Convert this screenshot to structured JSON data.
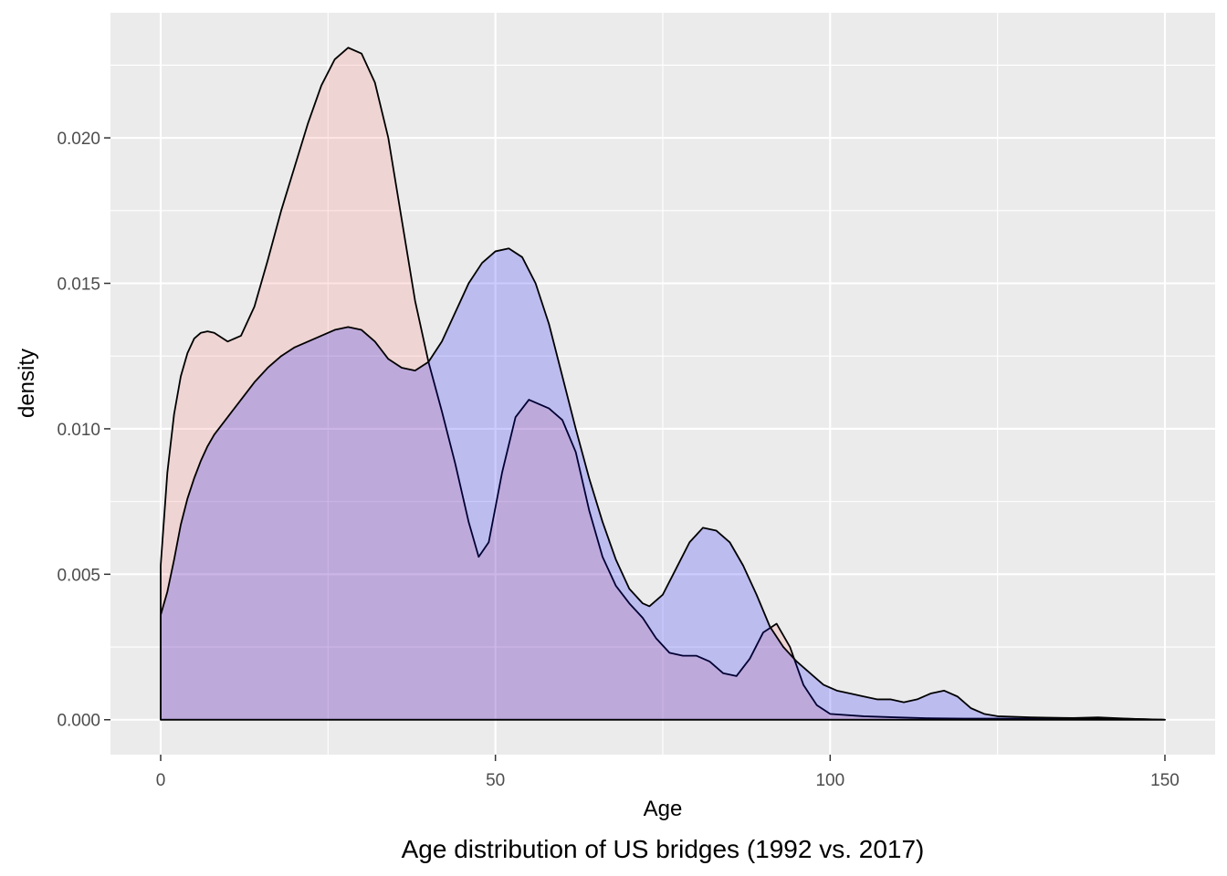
{
  "chart_data": {
    "type": "area",
    "xlabel": "Age",
    "ylabel": "density",
    "caption": "Age distribution of US bridges (1992 vs. 2017)",
    "xlim": [
      -7.5,
      157.5
    ],
    "ylim": [
      -0.0012,
      0.0243
    ],
    "x_ticks": [
      {
        "value": 0,
        "label": "0"
      },
      {
        "value": 50,
        "label": "50"
      },
      {
        "value": 100,
        "label": "100"
      },
      {
        "value": 150,
        "label": "150"
      }
    ],
    "y_ticks": [
      {
        "value": 0,
        "label": "0.000"
      },
      {
        "value": 0.005,
        "label": "0.005"
      },
      {
        "value": 0.01,
        "label": "0.010"
      },
      {
        "value": 0.015,
        "label": "0.015"
      },
      {
        "value": 0.02,
        "label": "0.020"
      }
    ],
    "grid": true,
    "legend": "none",
    "series": [
      {
        "color": "#F8766D",
        "fill_opacity": 0.2,
        "x": [
          0,
          1,
          2,
          3,
          4,
          5,
          6,
          7,
          8,
          10,
          12,
          14,
          16,
          18,
          20,
          22,
          24,
          26,
          28,
          30,
          32,
          34,
          36,
          38,
          40,
          42,
          44,
          46,
          47.5,
          49,
          51,
          53,
          55,
          58,
          60,
          62,
          64,
          66,
          68,
          70,
          72,
          74,
          76,
          78,
          80,
          82,
          84,
          86,
          88,
          90,
          92,
          94,
          96,
          98,
          100,
          105,
          110,
          115,
          120,
          125,
          130,
          135,
          140,
          145,
          150
        ],
        "y": [
          0.0053,
          0.0085,
          0.0105,
          0.0118,
          0.0126,
          0.0131,
          0.0133,
          0.01335,
          0.0133,
          0.013,
          0.0132,
          0.0142,
          0.0158,
          0.0175,
          0.019,
          0.0205,
          0.0218,
          0.0227,
          0.0231,
          0.0229,
          0.0219,
          0.02,
          0.0172,
          0.0144,
          0.0123,
          0.0106,
          0.0088,
          0.0068,
          0.0056,
          0.0061,
          0.0085,
          0.0104,
          0.011,
          0.0107,
          0.0103,
          0.0092,
          0.0072,
          0.0056,
          0.0046,
          0.004,
          0.0035,
          0.0028,
          0.0023,
          0.0022,
          0.0022,
          0.002,
          0.0016,
          0.0015,
          0.0021,
          0.003,
          0.0033,
          0.0025,
          0.0012,
          0.0005,
          0.0002,
          0.00012,
          8e-05,
          5e-05,
          4e-05,
          4e-05,
          3e-05,
          5e-05,
          8e-05,
          3e-05,
          0.0
        ]
      },
      {
        "color": "#0000FF",
        "fill_opacity": 0.2,
        "x": [
          0,
          1,
          2,
          3,
          4,
          5,
          6,
          7,
          8,
          10,
          12,
          14,
          16,
          18,
          20,
          22,
          24,
          26,
          28,
          30,
          32,
          34,
          36,
          38,
          40,
          42,
          44,
          46,
          48,
          50,
          52,
          54,
          56,
          58,
          60,
          62,
          64,
          66,
          68,
          70,
          72,
          73,
          75,
          77,
          79,
          81,
          83,
          85,
          87,
          89,
          91,
          93,
          95,
          97,
          99,
          101,
          103,
          105,
          107,
          109,
          111,
          113,
          115,
          117,
          119,
          121,
          123,
          125,
          130,
          135,
          140,
          145,
          150
        ],
        "y": [
          0.0036,
          0.0044,
          0.0055,
          0.0067,
          0.0076,
          0.0083,
          0.0089,
          0.0094,
          0.0098,
          0.0104,
          0.011,
          0.0116,
          0.0121,
          0.0125,
          0.0128,
          0.013,
          0.0132,
          0.0134,
          0.0135,
          0.0134,
          0.013,
          0.0124,
          0.0121,
          0.012,
          0.0123,
          0.013,
          0.014,
          0.015,
          0.0157,
          0.0161,
          0.0162,
          0.0159,
          0.015,
          0.0136,
          0.0118,
          0.01,
          0.0083,
          0.0068,
          0.0055,
          0.0045,
          0.004,
          0.0039,
          0.0043,
          0.0052,
          0.0061,
          0.0066,
          0.0065,
          0.0061,
          0.0053,
          0.0043,
          0.0032,
          0.0025,
          0.002,
          0.0016,
          0.0012,
          0.001,
          0.0009,
          0.0008,
          0.0007,
          0.0007,
          0.0006,
          0.0007,
          0.0009,
          0.001,
          0.0008,
          0.0004,
          0.0002,
          0.00012,
          8e-05,
          6e-05,
          5e-05,
          3e-05,
          0.0
        ]
      }
    ]
  }
}
